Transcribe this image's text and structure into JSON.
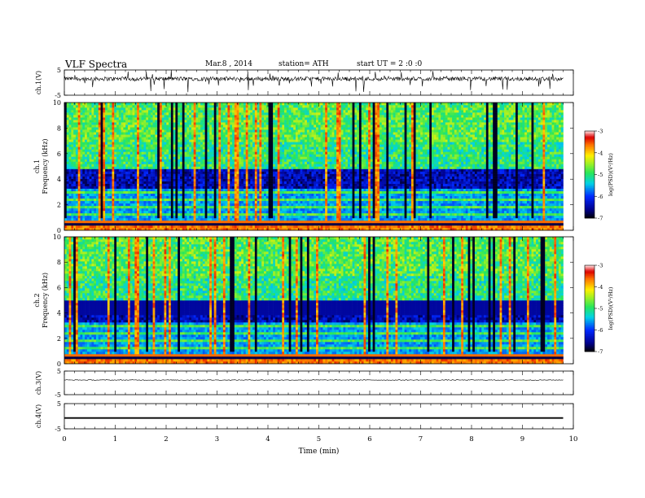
{
  "header": {
    "title": "VLF  Spectra",
    "date": "Mar.8  , 2014",
    "station": "station= ATH",
    "start": "start  UT =   2  :0  :0"
  },
  "chart_data": [
    {
      "id": "ch1_waveform",
      "type": "line",
      "ylabel": "ch.1(V)",
      "ylim": [
        -5,
        5
      ],
      "yticks": [
        "5",
        "-5"
      ],
      "xlim": [
        0,
        10
      ],
      "description_values": "noisy waveform centered near 1.5 V with spikes"
    },
    {
      "id": "ch1_spectrogram",
      "type": "heatmap",
      "ylabel_top": "ch.1",
      "ylabel": "Frequency  (kHz)",
      "ylim": [
        0,
        10
      ],
      "yticks": [
        "0",
        "2",
        "4",
        "6",
        "8",
        "10"
      ],
      "xlim": [
        0,
        10
      ],
      "colorbar": {
        "label": "log(PSD)(V²/Hz)",
        "range": [
          -7,
          -3
        ],
        "ticks": [
          "-3",
          "-4",
          "-5",
          "-6",
          "-7"
        ]
      }
    },
    {
      "id": "ch2_spectrogram",
      "type": "heatmap",
      "ylabel_top": "ch.2",
      "ylabel": "Frequency  (kHz)",
      "ylim": [
        0,
        10
      ],
      "yticks": [
        "0",
        "2",
        "4",
        "6",
        "8",
        "10"
      ],
      "xlim": [
        0,
        10
      ],
      "colorbar": {
        "label": "log(PSD)(V²/Hz)",
        "range": [
          -7,
          -3
        ],
        "ticks": [
          "-3",
          "-4",
          "-5",
          "-6",
          "-7"
        ]
      }
    },
    {
      "id": "ch3_waveform",
      "type": "line",
      "ylabel": "ch.3(V)",
      "ylim": [
        -5,
        5
      ],
      "yticks": [
        "5",
        "-5"
      ],
      "xlim": [
        0,
        10
      ]
    },
    {
      "id": "ch4_waveform",
      "type": "line",
      "ylabel": "ch.4(V)",
      "ylim": [
        -5,
        5
      ],
      "yticks": [
        "5",
        "-5"
      ],
      "xlim": [
        0,
        10
      ]
    }
  ],
  "x_axis": {
    "label": "Time  (min)",
    "ticks": [
      "0",
      "1",
      "2",
      "3",
      "4",
      "5",
      "6",
      "7",
      "8",
      "9",
      "10"
    ],
    "data_end": 9.8
  }
}
